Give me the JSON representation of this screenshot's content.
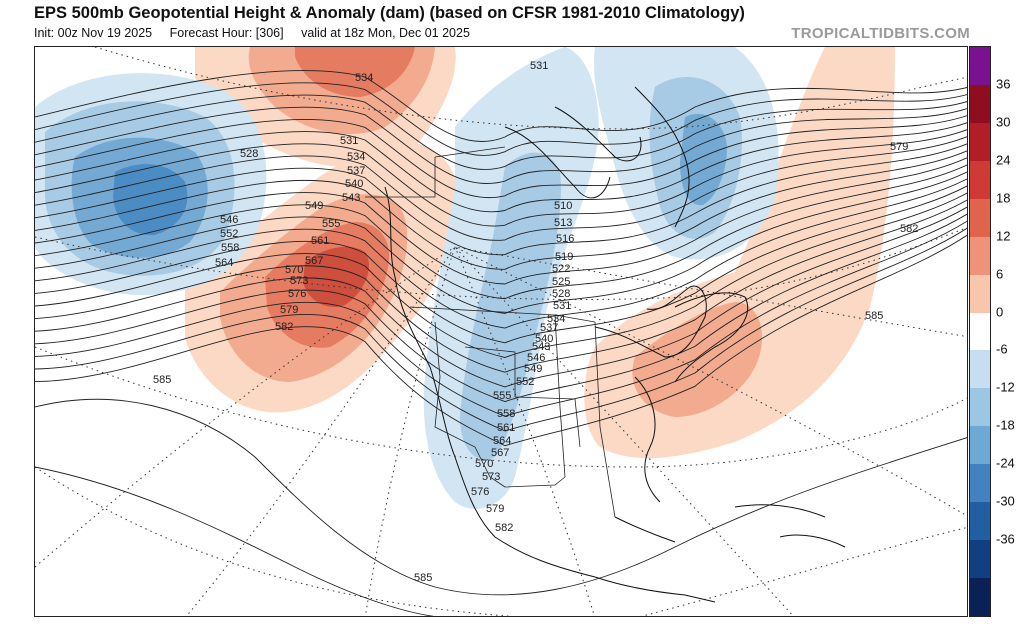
{
  "header": {
    "title": "EPS 500mb Geopotential Height & Anomaly (dam) (based on CFSR 1981-2010 Climatology)",
    "init": "Init: 00z Nov 19 2025",
    "forecast_hour": "Forecast Hour: [306]",
    "valid": "valid at 18z Mon, Dec 01 2025",
    "brand": "TROPICALTIDBITS.COM"
  },
  "colorbar": {
    "tick_labels": [
      "36",
      "30",
      "24",
      "18",
      "12",
      "6",
      "0",
      "-6",
      "-12",
      "-18",
      "-24",
      "-30",
      "-36"
    ],
    "colors": [
      "#7a1290",
      "#8e0d1e",
      "#b31d27",
      "#cf3b34",
      "#e0634d",
      "#ee937a",
      "#f8c5ad",
      "#ffffff",
      "#c6def0",
      "#9cc7e4",
      "#6ea8d4",
      "#4282be",
      "#225fa2",
      "#123f80",
      "#0a2158"
    ]
  },
  "map": {
    "anomaly_colors": {
      "pos6": "#fbd9c5",
      "pos12": "#f2ab8f",
      "pos18": "#e57c61",
      "pos24": "#cf4f3e",
      "neg6": "#d2e5f2",
      "neg12": "#a8cbe5",
      "neg18": "#74a9d3",
      "neg24": "#4c8cc4"
    },
    "height_labels": [
      "531",
      "534",
      "528",
      "546",
      "552",
      "558",
      "564",
      "549",
      "555",
      "561",
      "567",
      "570",
      "573",
      "576",
      "579",
      "582",
      "585",
      "531",
      "534",
      "537",
      "540",
      "543",
      "510",
      "513",
      "516",
      "519",
      "522",
      "525",
      "528",
      "531",
      "534",
      "537",
      "540",
      "543",
      "546",
      "549",
      "552",
      "555",
      "558",
      "561",
      "564",
      "567",
      "570",
      "573",
      "576",
      "579",
      "582",
      "585",
      "579",
      "582",
      "585"
    ]
  }
}
